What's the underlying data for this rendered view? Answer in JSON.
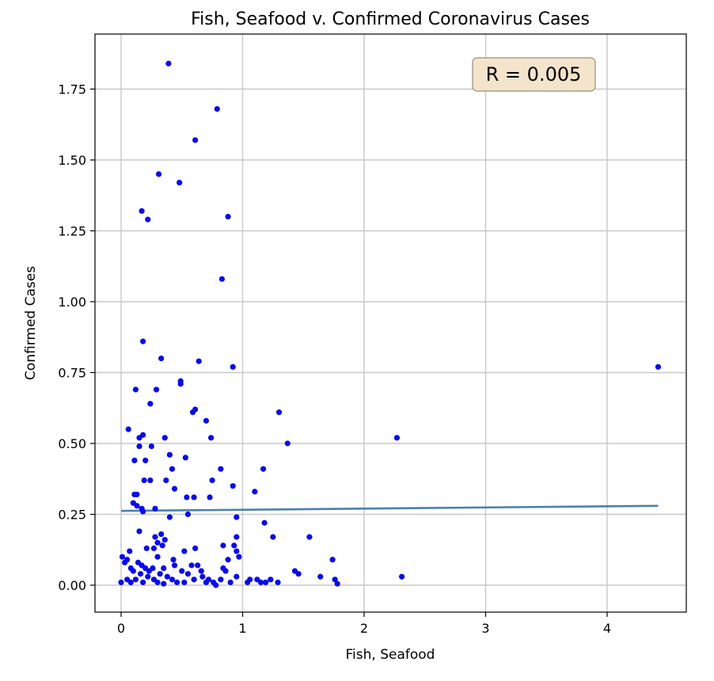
{
  "chart_data": {
    "type": "scatter",
    "title": "Fish, Seafood v. Confirmed Coronavirus Cases",
    "xlabel": "Fish, Seafood",
    "ylabel": "Confirmed Cases",
    "xlim": [
      -0.2,
      4.65
    ],
    "ylim": [
      -0.1,
      1.9
    ],
    "xticks": [
      0,
      1,
      2,
      3,
      4
    ],
    "xtick_labels": [
      "0",
      "1",
      "2",
      "3",
      "4"
    ],
    "yticks": [
      0,
      0.25,
      0.5,
      0.75,
      1.0,
      1.25,
      1.5,
      1.75
    ],
    "ytick_labels": [
      "0.00",
      "0.25",
      "0.50",
      "0.75",
      "1.00",
      "1.25",
      "1.50",
      "1.75"
    ],
    "grid": true,
    "annotation": "R = 0.005",
    "colors": {
      "points": "#0a0ae6",
      "fit_line": "#4a7fb0",
      "annotation_box": "#f5e4cc"
    },
    "fit_line": {
      "x": [
        0,
        4.42
      ],
      "y": [
        0.262,
        0.28
      ]
    },
    "points": [
      [
        0.39,
        1.84
      ],
      [
        0.79,
        1.68
      ],
      [
        0.61,
        1.57
      ],
      [
        0.31,
        1.45
      ],
      [
        0.48,
        1.42
      ],
      [
        0.17,
        1.32
      ],
      [
        0.22,
        1.29
      ],
      [
        0.88,
        1.3
      ],
      [
        0.83,
        1.08
      ],
      [
        0.18,
        0.86
      ],
      [
        0.33,
        0.8
      ],
      [
        0.64,
        0.79
      ],
      [
        0.92,
        0.77
      ],
      [
        4.42,
        0.77
      ],
      [
        0.49,
        0.72
      ],
      [
        0.49,
        0.71
      ],
      [
        0.12,
        0.69
      ],
      [
        0.29,
        0.69
      ],
      [
        0.24,
        0.64
      ],
      [
        0.61,
        0.62
      ],
      [
        0.59,
        0.61
      ],
      [
        1.3,
        0.61
      ],
      [
        0.7,
        0.58
      ],
      [
        0.06,
        0.55
      ],
      [
        0.18,
        0.53
      ],
      [
        0.15,
        0.52
      ],
      [
        0.36,
        0.52
      ],
      [
        0.74,
        0.52
      ],
      [
        2.27,
        0.52
      ],
      [
        1.37,
        0.5
      ],
      [
        0.15,
        0.49
      ],
      [
        0.25,
        0.49
      ],
      [
        0.4,
        0.46
      ],
      [
        0.53,
        0.45
      ],
      [
        0.11,
        0.44
      ],
      [
        0.2,
        0.44
      ],
      [
        0.42,
        0.41
      ],
      [
        0.82,
        0.41
      ],
      [
        1.17,
        0.41
      ],
      [
        0.19,
        0.37
      ],
      [
        0.24,
        0.37
      ],
      [
        0.37,
        0.37
      ],
      [
        0.75,
        0.37
      ],
      [
        0.44,
        0.34
      ],
      [
        0.92,
        0.35
      ],
      [
        1.1,
        0.33
      ],
      [
        0.11,
        0.32
      ],
      [
        0.13,
        0.32
      ],
      [
        0.54,
        0.31
      ],
      [
        0.6,
        0.31
      ],
      [
        0.73,
        0.31
      ],
      [
        0.1,
        0.29
      ],
      [
        0.13,
        0.28
      ],
      [
        0.17,
        0.27
      ],
      [
        0.18,
        0.26
      ],
      [
        0.28,
        0.27
      ],
      [
        0.55,
        0.25
      ],
      [
        0.4,
        0.24
      ],
      [
        0.95,
        0.24
      ],
      [
        1.18,
        0.22
      ],
      [
        0.15,
        0.19
      ],
      [
        0.28,
        0.17
      ],
      [
        0.33,
        0.18
      ],
      [
        0.36,
        0.16
      ],
      [
        1.55,
        0.17
      ],
      [
        1.25,
        0.17
      ],
      [
        0.95,
        0.17
      ],
      [
        0.3,
        0.15
      ],
      [
        0.34,
        0.14
      ],
      [
        0.84,
        0.14
      ],
      [
        0.93,
        0.14
      ],
      [
        0.21,
        0.13
      ],
      [
        0.27,
        0.13
      ],
      [
        0.52,
        0.12
      ],
      [
        0.61,
        0.13
      ],
      [
        0.95,
        0.12
      ],
      [
        0.07,
        0.12
      ],
      [
        0.01,
        0.1
      ],
      [
        0.05,
        0.09
      ],
      [
        0.3,
        0.1
      ],
      [
        0.43,
        0.09
      ],
      [
        0.97,
        0.1
      ],
      [
        0.88,
        0.09
      ],
      [
        1.74,
        0.09
      ],
      [
        0.03,
        0.08
      ],
      [
        0.14,
        0.08
      ],
      [
        0.17,
        0.07
      ],
      [
        0.08,
        0.06
      ],
      [
        0.2,
        0.06
      ],
      [
        0.26,
        0.06
      ],
      [
        0.35,
        0.06
      ],
      [
        0.44,
        0.07
      ],
      [
        0.58,
        0.07
      ],
      [
        0.63,
        0.07
      ],
      [
        0.84,
        0.06
      ],
      [
        0.1,
        0.05
      ],
      [
        0.23,
        0.05
      ],
      [
        0.32,
        0.04
      ],
      [
        0.5,
        0.05
      ],
      [
        0.66,
        0.05
      ],
      [
        0.86,
        0.05
      ],
      [
        1.43,
        0.05
      ],
      [
        1.46,
        0.04
      ],
      [
        2.31,
        0.03
      ],
      [
        0.16,
        0.04
      ],
      [
        0.22,
        0.03
      ],
      [
        0.38,
        0.03
      ],
      [
        0.55,
        0.04
      ],
      [
        0.67,
        0.03
      ],
      [
        0.95,
        0.03
      ],
      [
        1.64,
        0.03
      ],
      [
        1.76,
        0.02
      ],
      [
        0.05,
        0.02
      ],
      [
        0.12,
        0.02
      ],
      [
        0.27,
        0.02
      ],
      [
        0.42,
        0.02
      ],
      [
        0.6,
        0.02
      ],
      [
        0.72,
        0.02
      ],
      [
        0.82,
        0.02
      ],
      [
        1.06,
        0.02
      ],
      [
        1.12,
        0.02
      ],
      [
        1.19,
        0.01
      ],
      [
        1.23,
        0.02
      ],
      [
        0.0,
        0.01
      ],
      [
        0.08,
        0.01
      ],
      [
        0.18,
        0.01
      ],
      [
        0.3,
        0.01
      ],
      [
        0.46,
        0.01
      ],
      [
        0.52,
        0.01
      ],
      [
        0.7,
        0.01
      ],
      [
        0.76,
        0.01
      ],
      [
        0.9,
        0.01
      ],
      [
        1.04,
        0.01
      ],
      [
        1.15,
        0.01
      ],
      [
        1.29,
        0.01
      ],
      [
        1.78,
        0.005
      ],
      [
        0.78,
        0.0
      ],
      [
        0.35,
        0.005
      ]
    ]
  }
}
